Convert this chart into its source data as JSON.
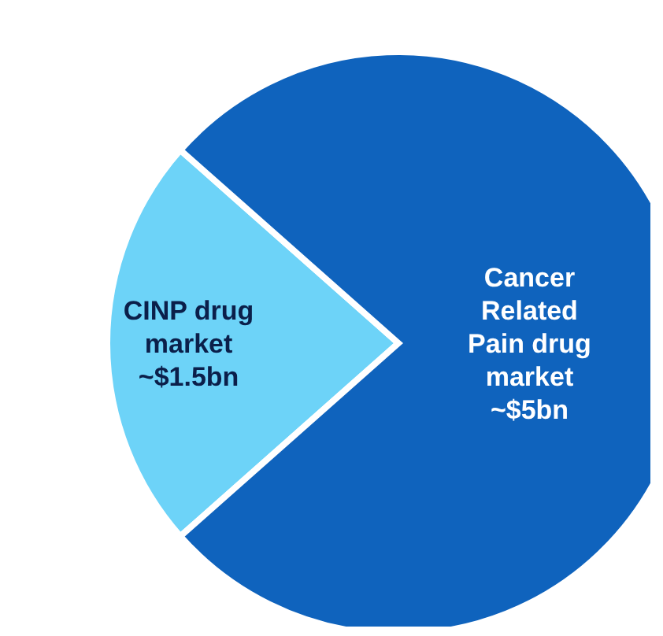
{
  "chart_data": {
    "type": "pie",
    "categories": [
      "CINP drug market",
      "Cancer Related Pain drug market"
    ],
    "values": [
      1.5,
      5
    ],
    "value_labels": [
      "~$1.5bn",
      "~$5bn"
    ],
    "colors": [
      "#6dd3f8",
      "#0f63bd"
    ],
    "legend": false
  }
}
